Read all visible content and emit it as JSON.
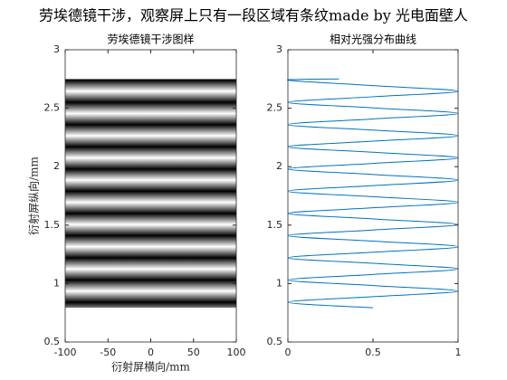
{
  "title": "劳埃德镜干涉，观察屏上只有一段区域有条纹made by 光电面壁人",
  "chart_data": [
    {
      "type": "image",
      "title": "劳埃德镜干涉图样",
      "xlabel": "衍射屏横向/mm",
      "ylabel": "衍射屏纵向/mm",
      "xlim": [
        -100,
        100
      ],
      "xticks": [
        -100,
        -50,
        0,
        50,
        100
      ],
      "ylim": [
        0.5,
        3
      ],
      "yticks": [
        0.5,
        1,
        1.5,
        2,
        2.5,
        3
      ]
    },
    {
      "type": "line",
      "title": "相对光强分布曲线",
      "color": "#0072bd",
      "xlim": [
        0,
        1
      ],
      "xticks": [
        0,
        0.5,
        1
      ],
      "ylim": [
        0.5,
        3
      ],
      "yticks": [
        0.5,
        1,
        1.5,
        2,
        2.5,
        3
      ],
      "x": [
        0.3,
        0,
        0.5,
        1,
        0.5,
        0,
        0.5,
        1,
        0.5,
        0,
        0.5,
        1,
        0.5,
        0,
        0.5,
        1,
        0.5,
        0,
        0.5,
        1,
        0.5,
        0,
        0.5,
        1,
        0.5,
        0,
        0.5,
        1,
        0.5,
        0,
        0.5,
        1,
        0.5,
        0,
        0.5,
        1,
        0.5,
        0,
        0.5,
        1,
        0.5,
        0,
        0.5
      ],
      "y": [
        2.75,
        2.74,
        2.693,
        2.645,
        2.598,
        2.55,
        2.503,
        2.455,
        2.408,
        2.36,
        2.313,
        2.265,
        2.218,
        2.17,
        2.123,
        2.075,
        2.028,
        1.98,
        1.933,
        1.885,
        1.838,
        1.79,
        1.743,
        1.695,
        1.648,
        1.6,
        1.553,
        1.505,
        1.458,
        1.41,
        1.363,
        1.315,
        1.268,
        1.22,
        1.173,
        1.125,
        1.078,
        1.03,
        0.983,
        0.935,
        0.888,
        0.84,
        0.793
      ]
    }
  ]
}
